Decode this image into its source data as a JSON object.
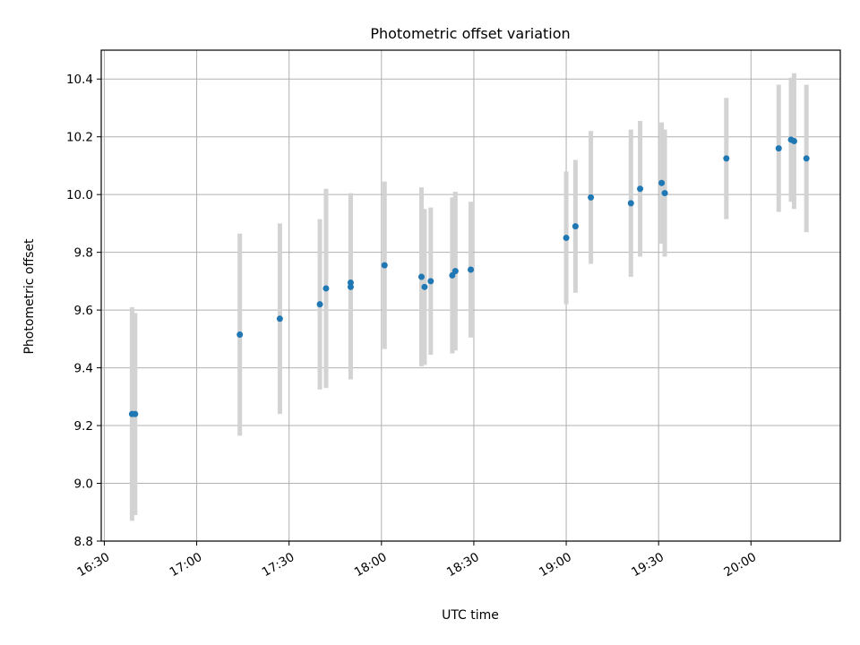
{
  "chart_data": {
    "type": "scatter",
    "title": "Photometric offset variation",
    "xlabel": "UTC time",
    "ylabel": "Photometric offset",
    "xlim": [
      "16:29",
      "20:29"
    ],
    "ylim": [
      8.8,
      10.5
    ],
    "x_ticks": [
      "16:30",
      "17:00",
      "17:30",
      "18:00",
      "18:30",
      "19:00",
      "19:30",
      "20:00"
    ],
    "y_ticks": [
      "8.8",
      "9.0",
      "9.2",
      "9.4",
      "9.6",
      "9.8",
      "10.0",
      "10.2",
      "10.4"
    ],
    "grid": true,
    "marker_color": "#1f77b4",
    "errorbar_color": "#d3d3d3",
    "points": [
      {
        "t": "16:39",
        "y": 9.24,
        "err": 0.37
      },
      {
        "t": "16:40",
        "y": 9.24,
        "err": 0.35
      },
      {
        "t": "17:14",
        "y": 9.515,
        "err": 0.35
      },
      {
        "t": "17:27",
        "y": 9.57,
        "err": 0.33
      },
      {
        "t": "17:40",
        "y": 9.62,
        "err": 0.295
      },
      {
        "t": "17:42",
        "y": 9.675,
        "err": 0.345
      },
      {
        "t": "17:50",
        "y": 9.68,
        "err": 0.32
      },
      {
        "t": "17:50",
        "y": 9.695,
        "err": 0.31
      },
      {
        "t": "18:01",
        "y": 9.755,
        "err": 0.29
      },
      {
        "t": "18:13",
        "y": 9.715,
        "err": 0.31
      },
      {
        "t": "18:14",
        "y": 9.68,
        "err": 0.27
      },
      {
        "t": "18:16",
        "y": 9.7,
        "err": 0.255
      },
      {
        "t": "18:23",
        "y": 9.72,
        "err": 0.27
      },
      {
        "t": "18:24",
        "y": 9.735,
        "err": 0.275
      },
      {
        "t": "18:29",
        "y": 9.74,
        "err": 0.235
      },
      {
        "t": "19:00",
        "y": 9.85,
        "err": 0.23
      },
      {
        "t": "19:03",
        "y": 9.89,
        "err": 0.23
      },
      {
        "t": "19:08",
        "y": 9.99,
        "err": 0.23
      },
      {
        "t": "19:21",
        "y": 9.97,
        "err": 0.255
      },
      {
        "t": "19:24",
        "y": 10.02,
        "err": 0.235
      },
      {
        "t": "19:31",
        "y": 10.04,
        "err": 0.21
      },
      {
        "t": "19:32",
        "y": 10.005,
        "err": 0.22
      },
      {
        "t": "19:52",
        "y": 10.125,
        "err": 0.21
      },
      {
        "t": "20:09",
        "y": 10.16,
        "err": 0.22
      },
      {
        "t": "20:13",
        "y": 10.19,
        "err": 0.215
      },
      {
        "t": "20:14",
        "y": 10.185,
        "err": 0.235
      },
      {
        "t": "20:18",
        "y": 10.125,
        "err": 0.255
      }
    ]
  }
}
